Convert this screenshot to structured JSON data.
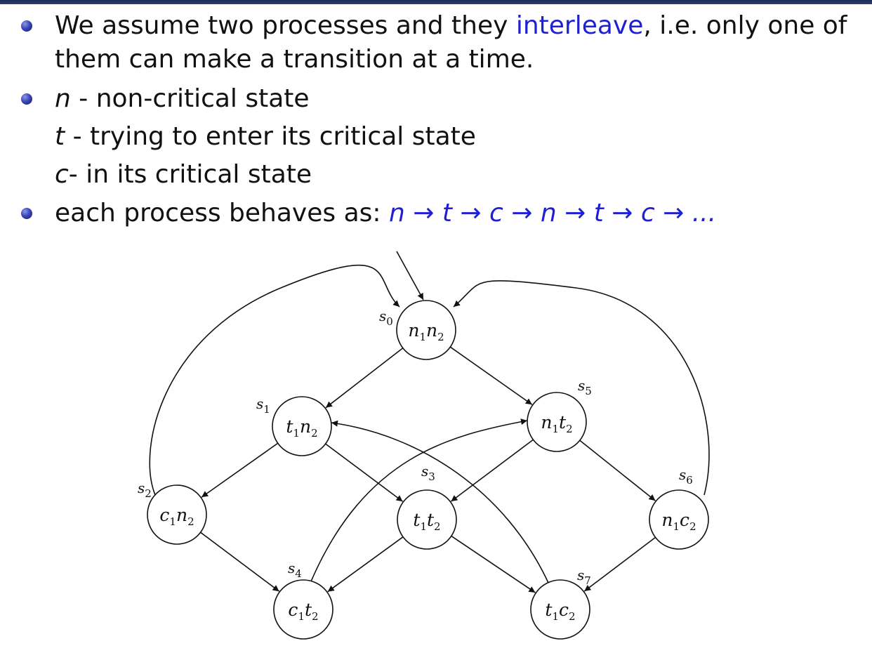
{
  "bullets": {
    "b1": {
      "pre": "We assume two processes and they ",
      "highlight": "interleave",
      "post": ", i.e. only one of",
      "cont": "them can make a transition at a time."
    },
    "b2": {
      "n_sym": "n",
      "n_text": " - non-critical state",
      "t_sym": "t",
      "t_text": " - trying to enter its critical state",
      "c_sym": "c",
      "c_text": "- in its critical state"
    },
    "b3": {
      "text": "each process behaves as: ",
      "formula": "n → t → c → n → t → c → ..."
    }
  },
  "diagram": {
    "nodes": [
      {
        "id": "s0",
        "state": "s0",
        "label": [
          "n1",
          "n2"
        ]
      },
      {
        "id": "s1",
        "state": "s1",
        "label": [
          "t1",
          "n2"
        ]
      },
      {
        "id": "s5",
        "state": "s5",
        "label": [
          "n1",
          "t2"
        ]
      },
      {
        "id": "s2",
        "state": "s2",
        "label": [
          "c1",
          "n2"
        ]
      },
      {
        "id": "s3",
        "state": "s3",
        "label": [
          "t1",
          "t2"
        ]
      },
      {
        "id": "s6",
        "state": "s6",
        "label": [
          "n1",
          "c2"
        ]
      },
      {
        "id": "s4",
        "state": "s4",
        "label": [
          "c1",
          "t2"
        ]
      },
      {
        "id": "s7",
        "state": "s7",
        "label": [
          "t1",
          "c2"
        ]
      }
    ],
    "edges": [
      [
        "s0",
        "s1"
      ],
      [
        "s0",
        "s5"
      ],
      [
        "s1",
        "s2"
      ],
      [
        "s1",
        "s3"
      ],
      [
        "s5",
        "s3"
      ],
      [
        "s5",
        "s6"
      ],
      [
        "s2",
        "s4"
      ],
      [
        "s3",
        "s4"
      ],
      [
        "s3",
        "s7"
      ],
      [
        "s6",
        "s7"
      ],
      [
        "s2",
        "s0"
      ],
      [
        "s6",
        "s0"
      ],
      [
        "s4",
        "s5"
      ],
      [
        "s7",
        "s1"
      ]
    ],
    "initial": "s0"
  }
}
